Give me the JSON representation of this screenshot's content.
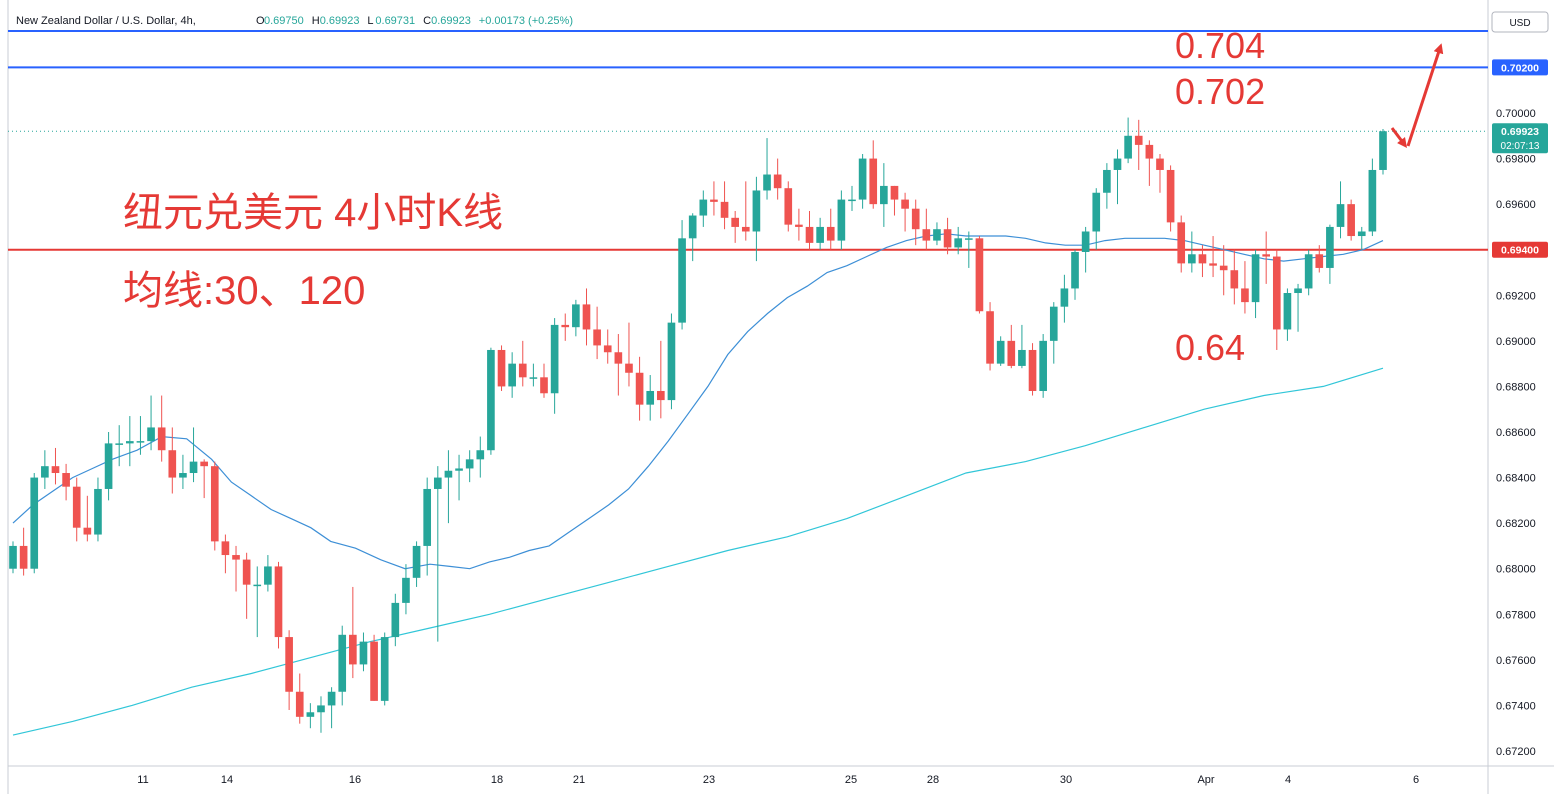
{
  "header": {
    "symbol": "New Zealand Dollar / U.S. Dollar, 4h,",
    "ohlc": [
      {
        "label": "O",
        "value": "0.69750"
      },
      {
        "label": "H",
        "value": "0.69923"
      },
      {
        "label": "L",
        "value": "0.69731"
      },
      {
        "label": "C",
        "value": "0.69923"
      },
      {
        "label": "",
        "value": "+0.00173 (+0.25%)"
      }
    ]
  },
  "currency_button": "USD",
  "annotations": {
    "title": "纽元兑美元 4小时K线",
    "ma_label": "均线:30、120",
    "target_high": "0.704",
    "target_mid": "0.702",
    "support_low": "0.64"
  },
  "price_tags": {
    "level_0702": "0.70200",
    "current_price": "0.69923",
    "countdown": "02:07:13",
    "level_0694": "0.69400"
  },
  "colors": {
    "up": "#26a69a",
    "down": "#ef5350",
    "ma30": "#3d8fd6",
    "ma120": "#31c6d8",
    "blue_line": "#2962ff",
    "red_line": "#e53935",
    "annotation": "#e53935"
  },
  "chart_data": {
    "type": "candlestick",
    "timeframe": "4h",
    "y_axis": {
      "min": 0.6715,
      "max": 0.7036,
      "ticks": [
        "0.70000",
        "0.69800",
        "0.69600",
        "0.69200",
        "0.69000",
        "0.68800",
        "0.68600",
        "0.68400",
        "0.68200",
        "0.68000",
        "0.67800",
        "0.67600",
        "0.67400",
        "0.67200"
      ]
    },
    "x_ticks": [
      "11",
      "14",
      "16",
      "18",
      "21",
      "23",
      "25",
      "28",
      "30",
      "Apr",
      "4",
      "6"
    ],
    "horizontal_levels": [
      {
        "value": 0.7036,
        "color": "blue"
      },
      {
        "value": 0.702,
        "color": "blue"
      },
      {
        "value": 0.694,
        "color": "red"
      }
    ],
    "candles": [
      [
        0.68,
        0.681,
        0.6798,
        0.6812
      ],
      [
        0.681,
        0.68,
        0.6797,
        0.6818
      ],
      [
        0.68,
        0.684,
        0.6798,
        0.6842
      ],
      [
        0.684,
        0.6845,
        0.6835,
        0.6852
      ],
      [
        0.6845,
        0.6842,
        0.6837,
        0.6853
      ],
      [
        0.6842,
        0.6836,
        0.683,
        0.6846
      ],
      [
        0.6836,
        0.6818,
        0.6812,
        0.684
      ],
      [
        0.6818,
        0.6815,
        0.6812,
        0.6832
      ],
      [
        0.6815,
        0.6835,
        0.6812,
        0.684
      ],
      [
        0.6835,
        0.6855,
        0.683,
        0.686
      ],
      [
        0.6855,
        0.6855,
        0.6845,
        0.6863
      ],
      [
        0.6855,
        0.6856,
        0.6845,
        0.6867
      ],
      [
        0.6856,
        0.6856,
        0.685,
        0.6867
      ],
      [
        0.6856,
        0.6862,
        0.6852,
        0.6876
      ],
      [
        0.6862,
        0.6852,
        0.6847,
        0.6876
      ],
      [
        0.6852,
        0.684,
        0.6833,
        0.6862
      ],
      [
        0.684,
        0.6842,
        0.6835,
        0.685
      ],
      [
        0.6842,
        0.6847,
        0.6838,
        0.6862
      ],
      [
        0.6847,
        0.6845,
        0.6831,
        0.6848
      ],
      [
        0.6845,
        0.6812,
        0.6808,
        0.6847
      ],
      [
        0.6812,
        0.6806,
        0.6798,
        0.6815
      ],
      [
        0.6806,
        0.6804,
        0.679,
        0.681
      ],
      [
        0.6804,
        0.6793,
        0.6778,
        0.6807
      ],
      [
        0.6793,
        0.6793,
        0.677,
        0.6801
      ],
      [
        0.6793,
        0.6801,
        0.679,
        0.6806
      ],
      [
        0.6801,
        0.677,
        0.6765,
        0.6803
      ],
      [
        0.677,
        0.6746,
        0.6738,
        0.6773
      ],
      [
        0.6746,
        0.6735,
        0.6732,
        0.6754
      ],
      [
        0.6735,
        0.6737,
        0.673,
        0.6741
      ],
      [
        0.6737,
        0.674,
        0.6728,
        0.6744
      ],
      [
        0.674,
        0.6746,
        0.673,
        0.6748
      ],
      [
        0.6746,
        0.6771,
        0.674,
        0.6775
      ],
      [
        0.6771,
        0.6758,
        0.6752,
        0.6792
      ],
      [
        0.6758,
        0.6768,
        0.6755,
        0.6772
      ],
      [
        0.6768,
        0.6742,
        0.6742,
        0.6771
      ],
      [
        0.6742,
        0.677,
        0.674,
        0.6772
      ],
      [
        0.677,
        0.6785,
        0.6766,
        0.6789
      ],
      [
        0.6785,
        0.6796,
        0.678,
        0.6802
      ],
      [
        0.6796,
        0.681,
        0.6792,
        0.6812
      ],
      [
        0.681,
        0.6835,
        0.6797,
        0.684
      ],
      [
        0.6835,
        0.684,
        0.6768,
        0.6845
      ],
      [
        0.684,
        0.6843,
        0.682,
        0.6852
      ],
      [
        0.6843,
        0.6844,
        0.683,
        0.685
      ],
      [
        0.6844,
        0.6848,
        0.6838,
        0.6852
      ],
      [
        0.6848,
        0.6852,
        0.684,
        0.6858
      ],
      [
        0.6852,
        0.6896,
        0.685,
        0.6897
      ],
      [
        0.6896,
        0.688,
        0.6878,
        0.6898
      ],
      [
        0.688,
        0.689,
        0.6875,
        0.6895
      ],
      [
        0.689,
        0.6884,
        0.688,
        0.69
      ],
      [
        0.6884,
        0.6884,
        0.688,
        0.689
      ],
      [
        0.6884,
        0.6877,
        0.6875,
        0.689
      ],
      [
        0.6877,
        0.6907,
        0.6868,
        0.691
      ],
      [
        0.6907,
        0.6906,
        0.69,
        0.6912
      ],
      [
        0.6906,
        0.6916,
        0.6902,
        0.6918
      ],
      [
        0.6916,
        0.6905,
        0.6898,
        0.6923
      ],
      [
        0.6905,
        0.6898,
        0.6892,
        0.6915
      ],
      [
        0.6898,
        0.6895,
        0.689,
        0.6905
      ],
      [
        0.6895,
        0.689,
        0.6876,
        0.6903
      ],
      [
        0.689,
        0.6886,
        0.688,
        0.6908
      ],
      [
        0.6886,
        0.6872,
        0.6865,
        0.6893
      ],
      [
        0.6872,
        0.6878,
        0.6865,
        0.6885
      ],
      [
        0.6878,
        0.6874,
        0.6866,
        0.69
      ],
      [
        0.6874,
        0.6908,
        0.687,
        0.6912
      ],
      [
        0.6908,
        0.6945,
        0.6905,
        0.6953
      ],
      [
        0.6945,
        0.6955,
        0.6935,
        0.6956
      ],
      [
        0.6955,
        0.6962,
        0.695,
        0.6966
      ],
      [
        0.6962,
        0.6961,
        0.6955,
        0.697
      ],
      [
        0.6961,
        0.6954,
        0.6949,
        0.697
      ],
      [
        0.6954,
        0.695,
        0.6943,
        0.6957
      ],
      [
        0.695,
        0.6948,
        0.6944,
        0.697
      ],
      [
        0.6948,
        0.6966,
        0.6935,
        0.6972
      ],
      [
        0.6966,
        0.6973,
        0.6962,
        0.6989
      ],
      [
        0.6973,
        0.6967,
        0.6962,
        0.698
      ],
      [
        0.6967,
        0.6951,
        0.6948,
        0.697
      ],
      [
        0.6951,
        0.695,
        0.6944,
        0.6958
      ],
      [
        0.695,
        0.6943,
        0.694,
        0.6957
      ],
      [
        0.6943,
        0.695,
        0.694,
        0.6954
      ],
      [
        0.695,
        0.6944,
        0.694,
        0.6958
      ],
      [
        0.6944,
        0.6962,
        0.694,
        0.6966
      ],
      [
        0.6962,
        0.6962,
        0.6957,
        0.6968
      ],
      [
        0.6962,
        0.698,
        0.6958,
        0.6982
      ],
      [
        0.698,
        0.696,
        0.6958,
        0.6988
      ],
      [
        0.696,
        0.6968,
        0.695,
        0.6978
      ],
      [
        0.6968,
        0.6962,
        0.6955,
        0.6968
      ],
      [
        0.6962,
        0.6958,
        0.6948,
        0.6965
      ],
      [
        0.6958,
        0.6949,
        0.6942,
        0.6962
      ],
      [
        0.6949,
        0.6944,
        0.694,
        0.6958
      ],
      [
        0.6944,
        0.6949,
        0.6942,
        0.6952
      ],
      [
        0.6949,
        0.6941,
        0.6938,
        0.6954
      ],
      [
        0.6941,
        0.6945,
        0.6938,
        0.695
      ],
      [
        0.6945,
        0.6945,
        0.6932,
        0.6948
      ],
      [
        0.6945,
        0.6913,
        0.6912,
        0.6946
      ],
      [
        0.6913,
        0.689,
        0.6887,
        0.6917
      ],
      [
        0.689,
        0.69,
        0.6889,
        0.6902
      ],
      [
        0.69,
        0.6889,
        0.6888,
        0.6907
      ],
      [
        0.6889,
        0.6896,
        0.6888,
        0.6907
      ],
      [
        0.6896,
        0.6878,
        0.6876,
        0.6899
      ],
      [
        0.6878,
        0.69,
        0.6875,
        0.6903
      ],
      [
        0.69,
        0.6915,
        0.689,
        0.6917
      ],
      [
        0.6915,
        0.6923,
        0.6908,
        0.6929
      ],
      [
        0.6923,
        0.6939,
        0.6918,
        0.694
      ],
      [
        0.6939,
        0.6948,
        0.693,
        0.695
      ],
      [
        0.6948,
        0.6965,
        0.694,
        0.6967
      ],
      [
        0.6965,
        0.6975,
        0.6958,
        0.6978
      ],
      [
        0.6975,
        0.698,
        0.696,
        0.6984
      ],
      [
        0.698,
        0.699,
        0.6978,
        0.6998
      ],
      [
        0.699,
        0.6986,
        0.6975,
        0.6997
      ],
      [
        0.6986,
        0.698,
        0.6968,
        0.6988
      ],
      [
        0.698,
        0.6975,
        0.6965,
        0.6982
      ],
      [
        0.6975,
        0.6952,
        0.6948,
        0.6977
      ],
      [
        0.6952,
        0.6934,
        0.693,
        0.6955
      ],
      [
        0.6934,
        0.6938,
        0.693,
        0.6948
      ],
      [
        0.6938,
        0.6934,
        0.6928,
        0.6942
      ],
      [
        0.6934,
        0.6933,
        0.6928,
        0.6946
      ],
      [
        0.6933,
        0.6931,
        0.692,
        0.6942
      ],
      [
        0.6931,
        0.6923,
        0.6916,
        0.694
      ],
      [
        0.6923,
        0.6917,
        0.6912,
        0.6935
      ],
      [
        0.6917,
        0.6938,
        0.691,
        0.694
      ],
      [
        0.6938,
        0.6937,
        0.6925,
        0.6948
      ],
      [
        0.6937,
        0.6905,
        0.6896,
        0.694
      ],
      [
        0.6905,
        0.6921,
        0.69,
        0.6923
      ],
      [
        0.6921,
        0.6923,
        0.6904,
        0.6925
      ],
      [
        0.6923,
        0.6938,
        0.692,
        0.694
      ],
      [
        0.6938,
        0.6932,
        0.693,
        0.6942
      ],
      [
        0.6932,
        0.695,
        0.6925,
        0.6951
      ],
      [
        0.695,
        0.696,
        0.6945,
        0.697
      ],
      [
        0.696,
        0.6946,
        0.6944,
        0.6962
      ],
      [
        0.6946,
        0.6948,
        0.694,
        0.695
      ],
      [
        0.6948,
        0.6975,
        0.6946,
        0.698
      ],
      [
        0.6975,
        0.6992,
        0.6973,
        0.6993
      ]
    ],
    "ma30": [
      [
        0,
        0.682
      ],
      [
        20,
        0.6828
      ],
      [
        40,
        0.6834
      ],
      [
        60,
        0.684
      ],
      [
        80,
        0.6844
      ],
      [
        100,
        0.6848
      ],
      [
        125,
        0.6852
      ],
      [
        150,
        0.6858
      ],
      [
        175,
        0.6857
      ],
      [
        200,
        0.6848
      ],
      [
        220,
        0.6838
      ],
      [
        240,
        0.6832
      ],
      [
        260,
        0.6826
      ],
      [
        280,
        0.6822
      ],
      [
        300,
        0.6818
      ],
      [
        320,
        0.6812
      ],
      [
        345,
        0.6809
      ],
      [
        370,
        0.6804
      ],
      [
        395,
        0.68
      ],
      [
        420,
        0.6802
      ],
      [
        440,
        0.6801
      ],
      [
        460,
        0.68
      ],
      [
        480,
        0.6803
      ],
      [
        500,
        0.6805
      ],
      [
        520,
        0.6808
      ],
      [
        540,
        0.681
      ],
      [
        560,
        0.6816
      ],
      [
        580,
        0.6822
      ],
      [
        600,
        0.6828
      ],
      [
        620,
        0.6835
      ],
      [
        640,
        0.6845
      ],
      [
        660,
        0.6856
      ],
      [
        680,
        0.6868
      ],
      [
        700,
        0.688
      ],
      [
        720,
        0.6894
      ],
      [
        740,
        0.6904
      ],
      [
        760,
        0.6912
      ],
      [
        780,
        0.6919
      ],
      [
        800,
        0.6924
      ],
      [
        820,
        0.693
      ],
      [
        840,
        0.6933
      ],
      [
        860,
        0.6937
      ],
      [
        880,
        0.6941
      ],
      [
        900,
        0.6944
      ],
      [
        920,
        0.6946
      ],
      [
        940,
        0.6947
      ],
      [
        960,
        0.6946
      ],
      [
        980,
        0.6946
      ],
      [
        1000,
        0.6946
      ],
      [
        1020,
        0.6945
      ],
      [
        1040,
        0.6943
      ],
      [
        1060,
        0.6942
      ],
      [
        1080,
        0.6942
      ],
      [
        1100,
        0.6944
      ],
      [
        1120,
        0.6945
      ],
      [
        1140,
        0.6945
      ],
      [
        1160,
        0.6945
      ],
      [
        1180,
        0.6944
      ],
      [
        1200,
        0.6942
      ],
      [
        1220,
        0.694
      ],
      [
        1240,
        0.6938
      ],
      [
        1260,
        0.6936
      ],
      [
        1280,
        0.6935
      ],
      [
        1300,
        0.6936
      ],
      [
        1320,
        0.6937
      ],
      [
        1340,
        0.6938
      ],
      [
        1360,
        0.694
      ],
      [
        1380,
        0.6944
      ]
    ],
    "ma120": [
      [
        0,
        0.6727
      ],
      [
        60,
        0.6733
      ],
      [
        120,
        0.674
      ],
      [
        180,
        0.6748
      ],
      [
        240,
        0.6754
      ],
      [
        300,
        0.6761
      ],
      [
        360,
        0.6768
      ],
      [
        420,
        0.6774
      ],
      [
        480,
        0.678
      ],
      [
        540,
        0.6787
      ],
      [
        600,
        0.6794
      ],
      [
        660,
        0.6801
      ],
      [
        720,
        0.6808
      ],
      [
        780,
        0.6814
      ],
      [
        840,
        0.6822
      ],
      [
        900,
        0.6832
      ],
      [
        960,
        0.6842
      ],
      [
        1020,
        0.6847
      ],
      [
        1080,
        0.6854
      ],
      [
        1140,
        0.6862
      ],
      [
        1200,
        0.687
      ],
      [
        1260,
        0.6876
      ],
      [
        1320,
        0.688
      ],
      [
        1380,
        0.6888
      ]
    ]
  }
}
